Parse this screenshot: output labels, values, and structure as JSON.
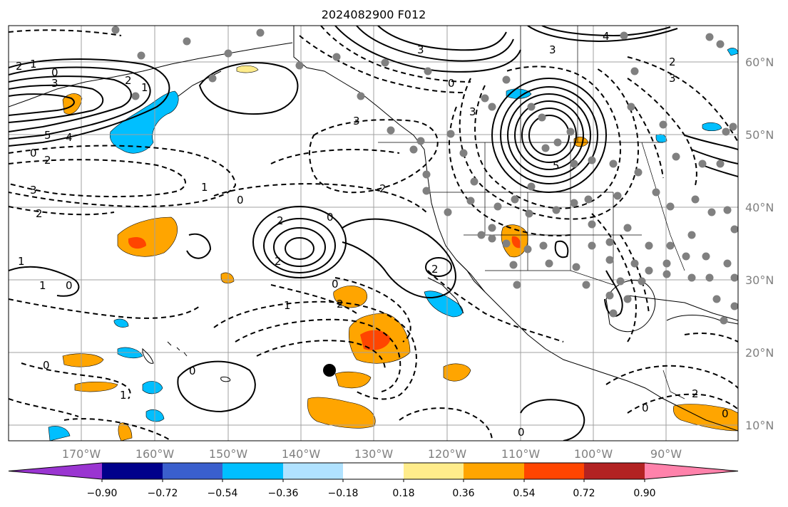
{
  "title": "2024082900 F012",
  "lon_labels": [
    "170°W",
    "160°W",
    "150°W",
    "140°W",
    "130°W",
    "120°W",
    "110°W",
    "100°W",
    "90°W"
  ],
  "lat_labels": [
    "60°N",
    "50°N",
    "40°N",
    "30°N",
    "20°N",
    "10°N"
  ],
  "colorbar": {
    "ticks": [
      "−0.90",
      "−0.72",
      "−0.54",
      "−0.36",
      "−0.18",
      "0.18",
      "0.36",
      "0.54",
      "0.72",
      "0.90"
    ],
    "colors": [
      "#9a35d1",
      "#00008b",
      "#3a5fcd",
      "#00bfff",
      "#b0e2ff",
      "#ffffff",
      "#ffec8b",
      "#ffa500",
      "#ff4500",
      "#b22222",
      "#ff82ab"
    ]
  },
  "contour_labels": [
    "2",
    "1",
    "0",
    "3",
    "2",
    "1",
    "5",
    "4",
    "0",
    "2",
    "3",
    "2",
    "1",
    "0",
    "2",
    "1",
    "0",
    "2",
    "2",
    "1",
    "0",
    "0",
    "1",
    "2",
    "1",
    "0",
    "0",
    "3",
    "2",
    "0",
    "3",
    "3",
    "4",
    "3",
    "5",
    "2",
    "0",
    "2",
    "0",
    "0",
    "3"
  ],
  "colors": {
    "positive_fill_light": "#ffa500",
    "positive_fill_strong": "#ff4500",
    "negative_fill": "#00bfff",
    "grid": "#a0a0a0",
    "station_dot": "#808080"
  }
}
